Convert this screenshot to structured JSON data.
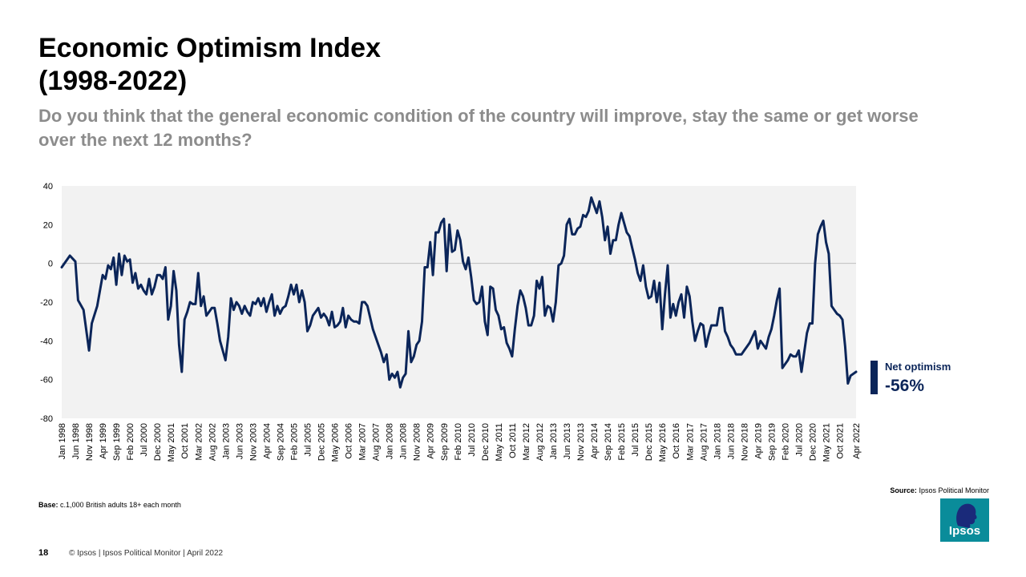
{
  "title": {
    "line1": "Economic Optimism Index",
    "line2": "(1998-2022)"
  },
  "subtitle": "Do you think that the general economic condition of the country will improve, stay the same or get worse over the next 12 months?",
  "legend": {
    "label": "Net optimism",
    "value": "-56%"
  },
  "source": {
    "label": "Source:",
    "text": "Ipsos  Political Monitor"
  },
  "base": {
    "label": "Base:",
    "text": "c.1,000 British adults 18+ each month"
  },
  "footer": {
    "page": "18",
    "text": "© Ipsos | Ipsos  Political Monitor | April 2022"
  },
  "logo": {
    "text": "Ipsos"
  },
  "colors": {
    "line": "#0b2559",
    "plot_bg": "#f2f2f2",
    "zero_line": "#bfbfbf",
    "accent": "#0a8c9a"
  },
  "chart_data": {
    "type": "line",
    "title": "Economic Optimism Index (1998-2022)",
    "series_name": "Net optimism",
    "ylim": [
      -80,
      40
    ],
    "yticks": [
      40,
      20,
      0,
      -20,
      -40,
      -60,
      -80
    ],
    "xlabels": [
      "Jan 1998",
      "Jun 1998",
      "Nov 1998",
      "Apr 1999",
      "Sep 1999",
      "Feb 2000",
      "Jul 2000",
      "Dec 2000",
      "May 2001",
      "Oct 2001",
      "Mar 2002",
      "Aug 2002",
      "Jan 2003",
      "Jun 2003",
      "Nov 2003",
      "Apr 2004",
      "Sep 2004",
      "Feb 2005",
      "Jul 2005",
      "Dec 2005",
      "May 2006",
      "Oct 2006",
      "Mar 2007",
      "Aug 2007",
      "Jan 2008",
      "Jun 2008",
      "Nov 2008",
      "Apr 2009",
      "Sep 2009",
      "Feb 2010",
      "Jul 2010",
      "Dec 2010",
      "May 2011",
      "Oct 2011",
      "Mar 2012",
      "Aug 2012",
      "Jan 2013",
      "Jun 2013",
      "Nov 2013",
      "Apr 2014",
      "Sep 2014",
      "Feb 2015",
      "Jul 2015",
      "Dec 2015",
      "May 2016",
      "Oct 2016",
      "Mar 2017",
      "Aug 2017",
      "Jan 2018",
      "Jun 2018",
      "Nov 2018",
      "Apr 2019",
      "Sep 2019",
      "Feb 2020",
      "Jul 2020",
      "Dec 2020",
      "May 2021",
      "Oct 2021",
      "Apr 2022"
    ],
    "points": [
      [
        "Jan 1998",
        -2
      ],
      [
        "Apr 1998",
        4
      ],
      [
        "Jun 1998",
        1
      ],
      [
        "Jul 1998",
        -19
      ],
      [
        "Sep 1998",
        -24
      ],
      [
        "Nov 1998",
        -45
      ],
      [
        "Dec 1998",
        -31
      ],
      [
        "Feb 1999",
        -22
      ],
      [
        "Apr 1999",
        -6
      ],
      [
        "May 1999",
        -8
      ],
      [
        "Jun 1999",
        -1
      ],
      [
        "Jul 1999",
        -3
      ],
      [
        "Aug 1999",
        3
      ],
      [
        "Sep 1999",
        -11
      ],
      [
        "Oct 1999",
        5
      ],
      [
        "Nov 1999",
        -6
      ],
      [
        "Dec 1999",
        4
      ],
      [
        "Jan 2000",
        1
      ],
      [
        "Feb 2000",
        2
      ],
      [
        "Mar 2000",
        -10
      ],
      [
        "Apr 2000",
        -5
      ],
      [
        "May 2000",
        -13
      ],
      [
        "Jun 2000",
        -11
      ],
      [
        "Jul 2000",
        -14
      ],
      [
        "Aug 2000",
        -16
      ],
      [
        "Sep 2000",
        -8
      ],
      [
        "Oct 2000",
        -16
      ],
      [
        "Nov 2000",
        -12
      ],
      [
        "Dec 2000",
        -6
      ],
      [
        "Jan 2001",
        -6
      ],
      [
        "Feb 2001",
        -8
      ],
      [
        "Mar 2001",
        -2
      ],
      [
        "Apr 2001",
        -29
      ],
      [
        "May 2001",
        -22
      ],
      [
        "Jun 2001",
        -4
      ],
      [
        "Jul 2001",
        -14
      ],
      [
        "Aug 2001",
        -42
      ],
      [
        "Sep 2001",
        -56
      ],
      [
        "Oct 2001",
        -29
      ],
      [
        "Nov 2001",
        -25
      ],
      [
        "Dec 2001",
        -20
      ],
      [
        "Jan 2002",
        -21
      ],
      [
        "Feb 2002",
        -21
      ],
      [
        "Mar 2002",
        -5
      ],
      [
        "Apr 2002",
        -22
      ],
      [
        "May 2002",
        -17
      ],
      [
        "Jun 2002",
        -27
      ],
      [
        "Jul 2002",
        -25
      ],
      [
        "Aug 2002",
        -23
      ],
      [
        "Sep 2002",
        -23
      ],
      [
        "Oct 2002",
        -31
      ],
      [
        "Nov 2002",
        -40
      ],
      [
        "Dec 2002",
        -45
      ],
      [
        "Jan 2003",
        -50
      ],
      [
        "Feb 2003",
        -38
      ],
      [
        "Mar 2003",
        -18
      ],
      [
        "Apr 2003",
        -24
      ],
      [
        "May 2003",
        -20
      ],
      [
        "Jun 2003",
        -22
      ],
      [
        "Jul 2003",
        -26
      ],
      [
        "Aug 2003",
        -22
      ],
      [
        "Sep 2003",
        -25
      ],
      [
        "Oct 2003",
        -27
      ],
      [
        "Nov 2003",
        -20
      ],
      [
        "Dec 2003",
        -21
      ],
      [
        "Jan 2004",
        -18
      ],
      [
        "Feb 2004",
        -22
      ],
      [
        "Mar 2004",
        -18
      ],
      [
        "Apr 2004",
        -25
      ],
      [
        "May 2004",
        -20
      ],
      [
        "Jun 2004",
        -16
      ],
      [
        "Jul 2004",
        -27
      ],
      [
        "Aug 2004",
        -22
      ],
      [
        "Sep 2004",
        -26
      ],
      [
        "Oct 2004",
        -23
      ],
      [
        "Nov 2004",
        -22
      ],
      [
        "Dec 2004",
        -17
      ],
      [
        "Jan 2005",
        -11
      ],
      [
        "Feb 2005",
        -16
      ],
      [
        "Mar 2005",
        -11
      ],
      [
        "Apr 2005",
        -20
      ],
      [
        "May 2005",
        -14
      ],
      [
        "Jun 2005",
        -20
      ],
      [
        "Jul 2005",
        -35
      ],
      [
        "Aug 2005",
        -32
      ],
      [
        "Sep 2005",
        -27
      ],
      [
        "Oct 2005",
        -25
      ],
      [
        "Nov 2005",
        -23
      ],
      [
        "Dec 2005",
        -28
      ],
      [
        "Jan 2006",
        -26
      ],
      [
        "Feb 2006",
        -28
      ],
      [
        "Mar 2006",
        -32
      ],
      [
        "Apr 2006",
        -25
      ],
      [
        "May 2006",
        -33
      ],
      [
        "Jun 2006",
        -32
      ],
      [
        "Jul 2006",
        -30
      ],
      [
        "Aug 2006",
        -23
      ],
      [
        "Sep 2006",
        -33
      ],
      [
        "Oct 2006",
        -27
      ],
      [
        "Nov 2006",
        -29
      ],
      [
        "Dec 2006",
        -30
      ],
      [
        "Jan 2007",
        -30
      ],
      [
        "Feb 2007",
        -31
      ],
      [
        "Mar 2007",
        -20
      ],
      [
        "Apr 2007",
        -20
      ],
      [
        "May 2007",
        -22
      ],
      [
        "Jun 2007",
        -28
      ],
      [
        "Jul 2007",
        -34
      ],
      [
        "Aug 2007",
        -38
      ],
      [
        "Sep 2007",
        -42
      ],
      [
        "Oct 2007",
        -46
      ],
      [
        "Nov 2007",
        -51
      ],
      [
        "Dec 2007",
        -47
      ],
      [
        "Jan 2008",
        -60
      ],
      [
        "Feb 2008",
        -57
      ],
      [
        "Mar 2008",
        -59
      ],
      [
        "Apr 2008",
        -56
      ],
      [
        "May 2008",
        -64
      ],
      [
        "Jun 2008",
        -59
      ],
      [
        "Jul 2008",
        -57
      ],
      [
        "Aug 2008",
        -35
      ],
      [
        "Sep 2008",
        -51
      ],
      [
        "Oct 2008",
        -48
      ],
      [
        "Nov 2008",
        -42
      ],
      [
        "Dec 2008",
        -40
      ],
      [
        "Jan 2009",
        -30
      ],
      [
        "Feb 2009",
        -2
      ],
      [
        "Mar 2009",
        -2
      ],
      [
        "Apr 2009",
        11
      ],
      [
        "May 2009",
        -6
      ],
      [
        "Jun 2009",
        16
      ],
      [
        "Jul 2009",
        16
      ],
      [
        "Aug 2009",
        21
      ],
      [
        "Sep 2009",
        23
      ],
      [
        "Oct 2009",
        -4
      ],
      [
        "Nov 2009",
        20
      ],
      [
        "Dec 2009",
        6
      ],
      [
        "Jan 2010",
        7
      ],
      [
        "Feb 2010",
        17
      ],
      [
        "Mar 2010",
        12
      ],
      [
        "Apr 2010",
        1
      ],
      [
        "May 2010",
        -3
      ],
      [
        "Jun 2010",
        3
      ],
      [
        "Jul 2010",
        -7
      ],
      [
        "Aug 2010",
        -19
      ],
      [
        "Sep 2010",
        -21
      ],
      [
        "Oct 2010",
        -20
      ],
      [
        "Nov 2010",
        -12
      ],
      [
        "Dec 2010",
        -30
      ],
      [
        "Jan 2011",
        -37
      ],
      [
        "Feb 2011",
        -12
      ],
      [
        "Mar 2011",
        -13
      ],
      [
        "Apr 2011",
        -24
      ],
      [
        "May 2011",
        -27
      ],
      [
        "Jun 2011",
        -34
      ],
      [
        "Jul 2011",
        -33
      ],
      [
        "Aug 2011",
        -41
      ],
      [
        "Sep 2011",
        -44
      ],
      [
        "Oct 2011",
        -48
      ],
      [
        "Nov 2011",
        -34
      ],
      [
        "Dec 2011",
        -22
      ],
      [
        "Jan 2012",
        -14
      ],
      [
        "Feb 2012",
        -17
      ],
      [
        "Mar 2012",
        -23
      ],
      [
        "Apr 2012",
        -32
      ],
      [
        "May 2012",
        -32
      ],
      [
        "Jun 2012",
        -27
      ],
      [
        "Jul 2012",
        -9
      ],
      [
        "Aug 2012",
        -13
      ],
      [
        "Sep 2012",
        -7
      ],
      [
        "Oct 2012",
        -27
      ],
      [
        "Nov 2012",
        -22
      ],
      [
        "Dec 2012",
        -23
      ],
      [
        "Jan 2013",
        -30
      ],
      [
        "Feb 2013",
        -20
      ],
      [
        "Mar 2013",
        -1
      ],
      [
        "Apr 2013",
        0
      ],
      [
        "May 2013",
        4
      ],
      [
        "Jun 2013",
        20
      ],
      [
        "Jul 2013",
        23
      ],
      [
        "Aug 2013",
        15
      ],
      [
        "Sep 2013",
        15
      ],
      [
        "Oct 2013",
        18
      ],
      [
        "Nov 2013",
        19
      ],
      [
        "Dec 2013",
        25
      ],
      [
        "Jan 2014",
        24
      ],
      [
        "Feb 2014",
        27
      ],
      [
        "Mar 2014",
        34
      ],
      [
        "Apr 2014",
        30
      ],
      [
        "May 2014",
        26
      ],
      [
        "Jun 2014",
        32
      ],
      [
        "Jul 2014",
        24
      ],
      [
        "Aug 2014",
        12
      ],
      [
        "Sep 2014",
        19
      ],
      [
        "Oct 2014",
        5
      ],
      [
        "Nov 2014",
        12
      ],
      [
        "Dec 2014",
        12
      ],
      [
        "Jan 2015",
        20
      ],
      [
        "Feb 2015",
        26
      ],
      [
        "Mar 2015",
        21
      ],
      [
        "Apr 2015",
        16
      ],
      [
        "May 2015",
        14
      ],
      [
        "Jun 2015",
        8
      ],
      [
        "Jul 2015",
        2
      ],
      [
        "Aug 2015",
        -5
      ],
      [
        "Sep 2015",
        -9
      ],
      [
        "Oct 2015",
        -1
      ],
      [
        "Nov 2015",
        -12
      ],
      [
        "Dec 2015",
        -18
      ],
      [
        "Jan 2016",
        -17
      ],
      [
        "Feb 2016",
        -9
      ],
      [
        "Mar 2016",
        -20
      ],
      [
        "Apr 2016",
        -10
      ],
      [
        "May 2016",
        -34
      ],
      [
        "Jun 2016",
        -16
      ],
      [
        "Jul 2016",
        -1
      ],
      [
        "Aug 2016",
        -28
      ],
      [
        "Sep 2016",
        -21
      ],
      [
        "Oct 2016",
        -27
      ],
      [
        "Nov 2016",
        -20
      ],
      [
        "Dec 2016",
        -16
      ],
      [
        "Jan 2017",
        -28
      ],
      [
        "Feb 2017",
        -12
      ],
      [
        "Mar 2017",
        -17
      ],
      [
        "Apr 2017",
        -30
      ],
      [
        "May 2017",
        -40
      ],
      [
        "Jun 2017",
        -35
      ],
      [
        "Jul 2017",
        -31
      ],
      [
        "Aug 2017",
        -32
      ],
      [
        "Sep 2017",
        -43
      ],
      [
        "Oct 2017",
        -37
      ],
      [
        "Nov 2017",
        -32
      ],
      [
        "Dec 2017",
        -32
      ],
      [
        "Jan 2018",
        -32
      ],
      [
        "Feb 2018",
        -23
      ],
      [
        "Mar 2018",
        -23
      ],
      [
        "Apr 2018",
        -35
      ],
      [
        "May 2018",
        -38
      ],
      [
        "Jun 2018",
        -42
      ],
      [
        "Jul 2018",
        -44
      ],
      [
        "Aug 2018",
        -47
      ],
      [
        "Sep 2018",
        -47
      ],
      [
        "Oct 2018",
        -47
      ],
      [
        "Nov 2018",
        -45
      ],
      [
        "Dec 2018",
        -43
      ],
      [
        "Jan 2019",
        -41
      ],
      [
        "Feb 2019",
        -38
      ],
      [
        "Mar 2019",
        -35
      ],
      [
        "Apr 2019",
        -44
      ],
      [
        "May 2019",
        -40
      ],
      [
        "Jun 2019",
        -42
      ],
      [
        "Jul 2019",
        -44
      ],
      [
        "Aug 2019",
        -38
      ],
      [
        "Sep 2019",
        -34
      ],
      [
        "Oct 2019",
        -27
      ],
      [
        "Nov 2019",
        -19
      ],
      [
        "Dec 2019",
        -13
      ],
      [
        "Jan 2020",
        -54
      ],
      [
        "Feb 2020",
        -52
      ],
      [
        "Mar 2020",
        -50
      ],
      [
        "Apr 2020",
        -47
      ],
      [
        "May 2020",
        -48
      ],
      [
        "Jun 2020",
        -48
      ],
      [
        "Jul 2020",
        -45
      ],
      [
        "Aug 2020",
        -56
      ],
      [
        "Sep 2020",
        -46
      ],
      [
        "Oct 2020",
        -36
      ],
      [
        "Nov 2020",
        -31
      ],
      [
        "Dec 2020",
        -31
      ],
      [
        "Jan 2021",
        0
      ],
      [
        "Feb 2021",
        15
      ],
      [
        "Mar 2021",
        19
      ],
      [
        "Apr 2021",
        22
      ],
      [
        "May 2021",
        11
      ],
      [
        "Jun 2021",
        5
      ],
      [
        "Jul 2021",
        -22
      ],
      [
        "Aug 2021",
        -24
      ],
      [
        "Sep 2021",
        -26
      ],
      [
        "Oct 2021",
        -27
      ],
      [
        "Nov 2021",
        -29
      ],
      [
        "Dec 2021",
        -43
      ],
      [
        "Jan 2022",
        -62
      ],
      [
        "Feb 2022",
        -58
      ],
      [
        "Apr 2022",
        -56
      ]
    ]
  }
}
